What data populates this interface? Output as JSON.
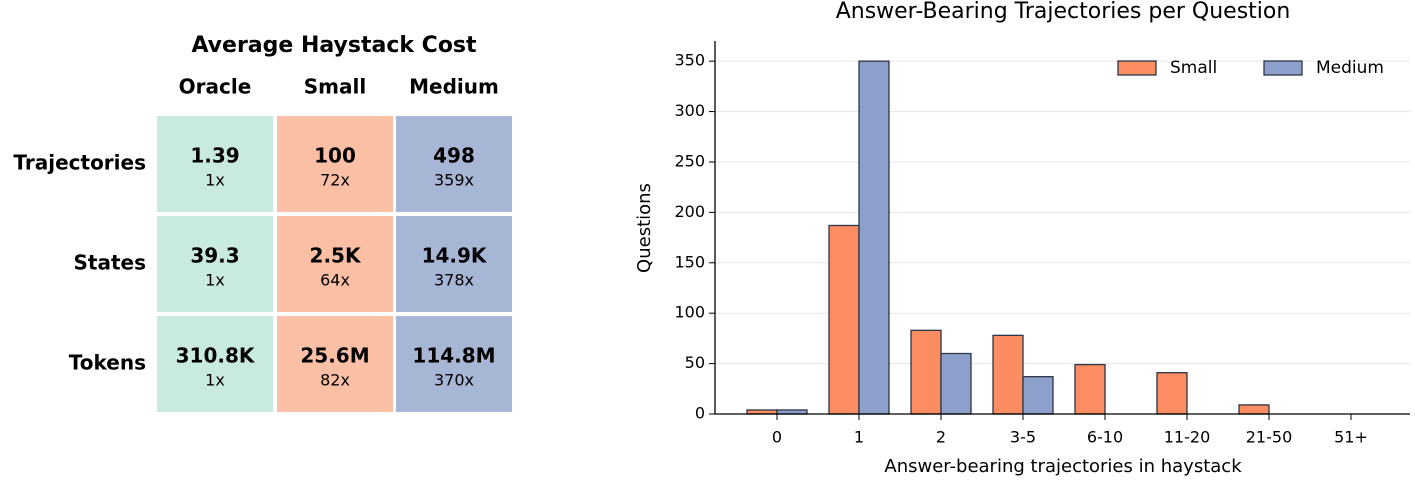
{
  "table": {
    "title": "Average Haystack Cost",
    "columns": [
      "Oracle",
      "Small",
      "Medium"
    ],
    "column_colors": [
      "#c9eadf",
      "#fbbfa5",
      "#a8b6d6"
    ],
    "rows": [
      {
        "label": "Trajectories",
        "cells": [
          {
            "value": "1.39",
            "ratio": "1x"
          },
          {
            "value": "100",
            "ratio": "72x"
          },
          {
            "value": "498",
            "ratio": "359x"
          }
        ]
      },
      {
        "label": "States",
        "cells": [
          {
            "value": "39.3",
            "ratio": "1x"
          },
          {
            "value": "2.5K",
            "ratio": "64x"
          },
          {
            "value": "14.9K",
            "ratio": "378x"
          }
        ]
      },
      {
        "label": "Tokens",
        "cells": [
          {
            "value": "310.8K",
            "ratio": "1x"
          },
          {
            "value": "25.6M",
            "ratio": "82x"
          },
          {
            "value": "114.8M",
            "ratio": "370x"
          }
        ]
      }
    ]
  },
  "chart_data": {
    "type": "bar",
    "title": "Answer-Bearing Trajectories per Question",
    "x_label": "Answer-bearing trajectories in haystack",
    "y_label": "Questions",
    "categories": [
      "0",
      "1",
      "2",
      "3-5",
      "6-10",
      "11-20",
      "21-50",
      "51+"
    ],
    "series": [
      {
        "name": "Small",
        "color": "#fc8d62",
        "values": [
          4,
          187,
          83,
          78,
          49,
          41,
          9,
          0
        ]
      },
      {
        "name": "Medium",
        "color": "#8da0cb",
        "values": [
          4,
          350,
          60,
          37,
          0,
          0,
          0,
          0
        ]
      }
    ],
    "ylim": [
      0,
      370
    ],
    "yticks": [
      0,
      50,
      100,
      150,
      200,
      250,
      300,
      350
    ],
    "grid": true,
    "legend": "upper right"
  }
}
